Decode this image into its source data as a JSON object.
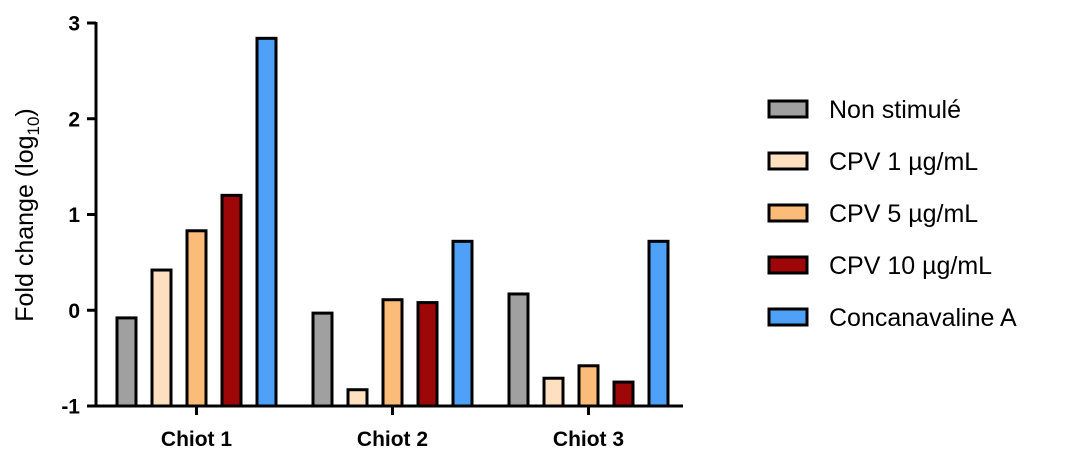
{
  "chart_data": {
    "type": "bar",
    "title": "",
    "xlabel": "",
    "ylabel": {
      "main": "Fold change (log",
      "sub": "10",
      "close": ")"
    },
    "ylim": [
      -1,
      3
    ],
    "yticks": [
      -1,
      0,
      1,
      2,
      3
    ],
    "ytick_labels": [
      "-1",
      "0",
      "1",
      "2",
      "3"
    ],
    "categories": [
      "Chiot 1",
      "Chiot 2",
      "Chiot 3"
    ],
    "series": [
      {
        "name": "Non stimulé",
        "color": "#a0a0a0",
        "values": [
          -0.08,
          -0.03,
          0.17
        ]
      },
      {
        "name": "CPV 1 µg/mL",
        "color": "#fde0c0",
        "values": [
          0.42,
          -0.83,
          -0.71
        ]
      },
      {
        "name": "CPV 5 µg/mL",
        "color": "#fbbb79",
        "values": [
          0.83,
          0.11,
          -0.58
        ]
      },
      {
        "name": "CPV 10 µg/mL",
        "color": "#9d0707",
        "values": [
          1.2,
          0.08,
          -0.75
        ]
      },
      {
        "name": "Concanavaline A",
        "color": "#4fa0f7",
        "values": [
          2.84,
          0.72,
          0.72
        ]
      }
    ],
    "legend": "right",
    "grid": false
  }
}
